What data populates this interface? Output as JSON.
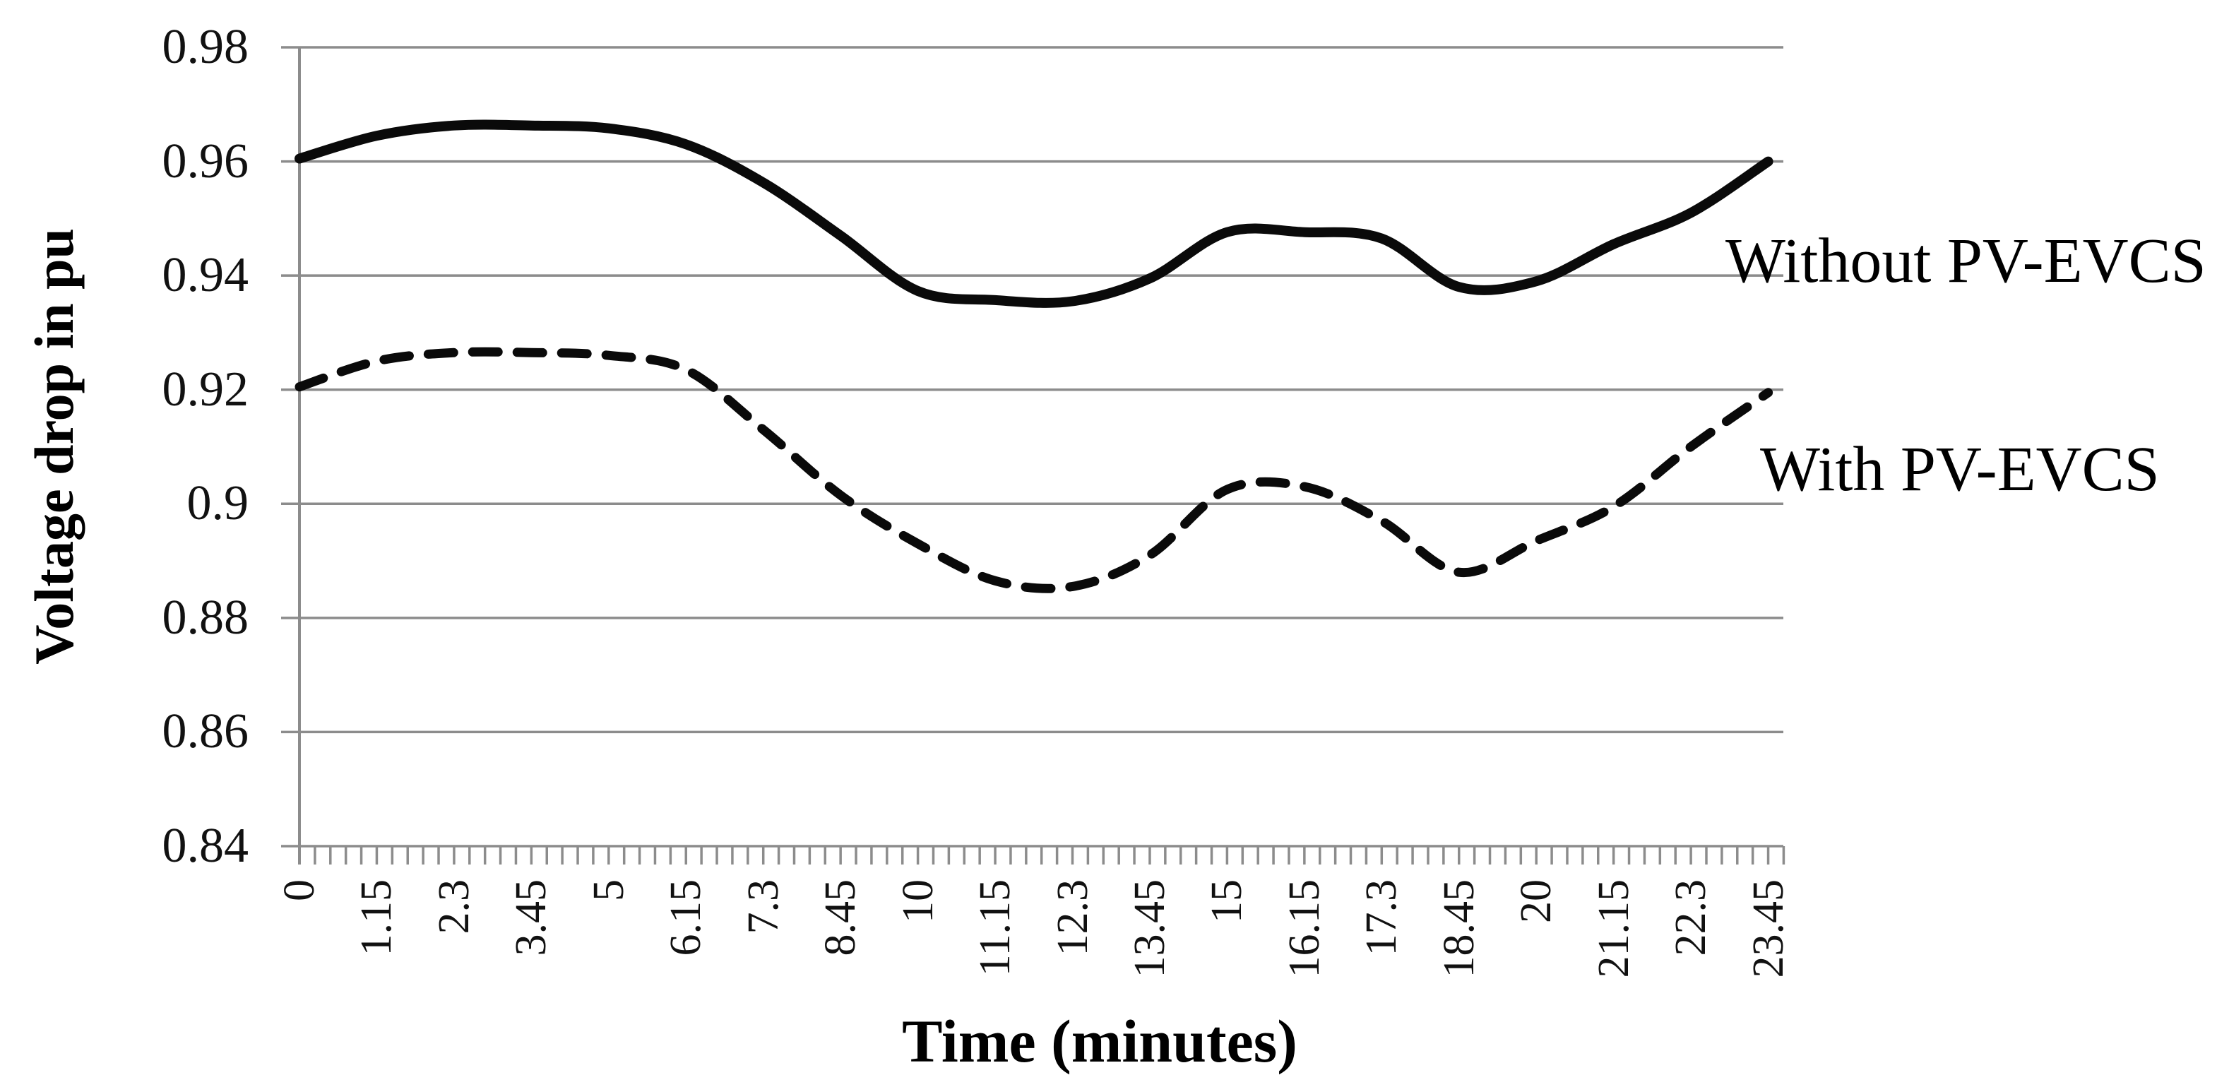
{
  "chart_data": {
    "type": "line",
    "title": "",
    "xlabel": "Time (minutes)",
    "ylabel": "Voltage drop in pu",
    "categories": [
      "0",
      "1.15",
      "2.3",
      "3.45",
      "5",
      "6.15",
      "7.3",
      "8.45",
      "10",
      "11.15",
      "12.3",
      "13.45",
      "15",
      "16.15",
      "17.3",
      "18.45",
      "20",
      "21.15",
      "22.3",
      "23.45"
    ],
    "ylim": [
      0.84,
      0.98
    ],
    "ytick_labels": [
      "0.98",
      "0.96",
      "0.94",
      "0.92",
      "0.9",
      "0.88",
      "0.86",
      "0.84"
    ],
    "grid": true,
    "minor_ticks_per_labeled_tick": 5,
    "axis_color": "#8c8c8c",
    "legend_position": "annotations-right-of-lines",
    "series": [
      {
        "name": "Without PV-EVCS",
        "style": "solid",
        "color": "#0a0a0a",
        "values": [
          0.9605,
          0.9645,
          0.9663,
          0.9663,
          0.9658,
          0.963,
          0.9563,
          0.947,
          0.9373,
          0.9357,
          0.9355,
          0.9395,
          0.9476,
          0.9476,
          0.9465,
          0.938,
          0.939,
          0.9455,
          0.951,
          0.96
        ]
      },
      {
        "name": "With PV-EVCS",
        "style": "dashed",
        "color": "#0a0a0a",
        "values": [
          0.9205,
          0.925,
          0.9265,
          0.9265,
          0.926,
          0.9235,
          0.913,
          0.9015,
          0.893,
          0.8865,
          0.8855,
          0.891,
          0.9025,
          0.903,
          0.897,
          0.888,
          0.8935,
          0.8995,
          0.91,
          0.9195
        ]
      }
    ]
  }
}
